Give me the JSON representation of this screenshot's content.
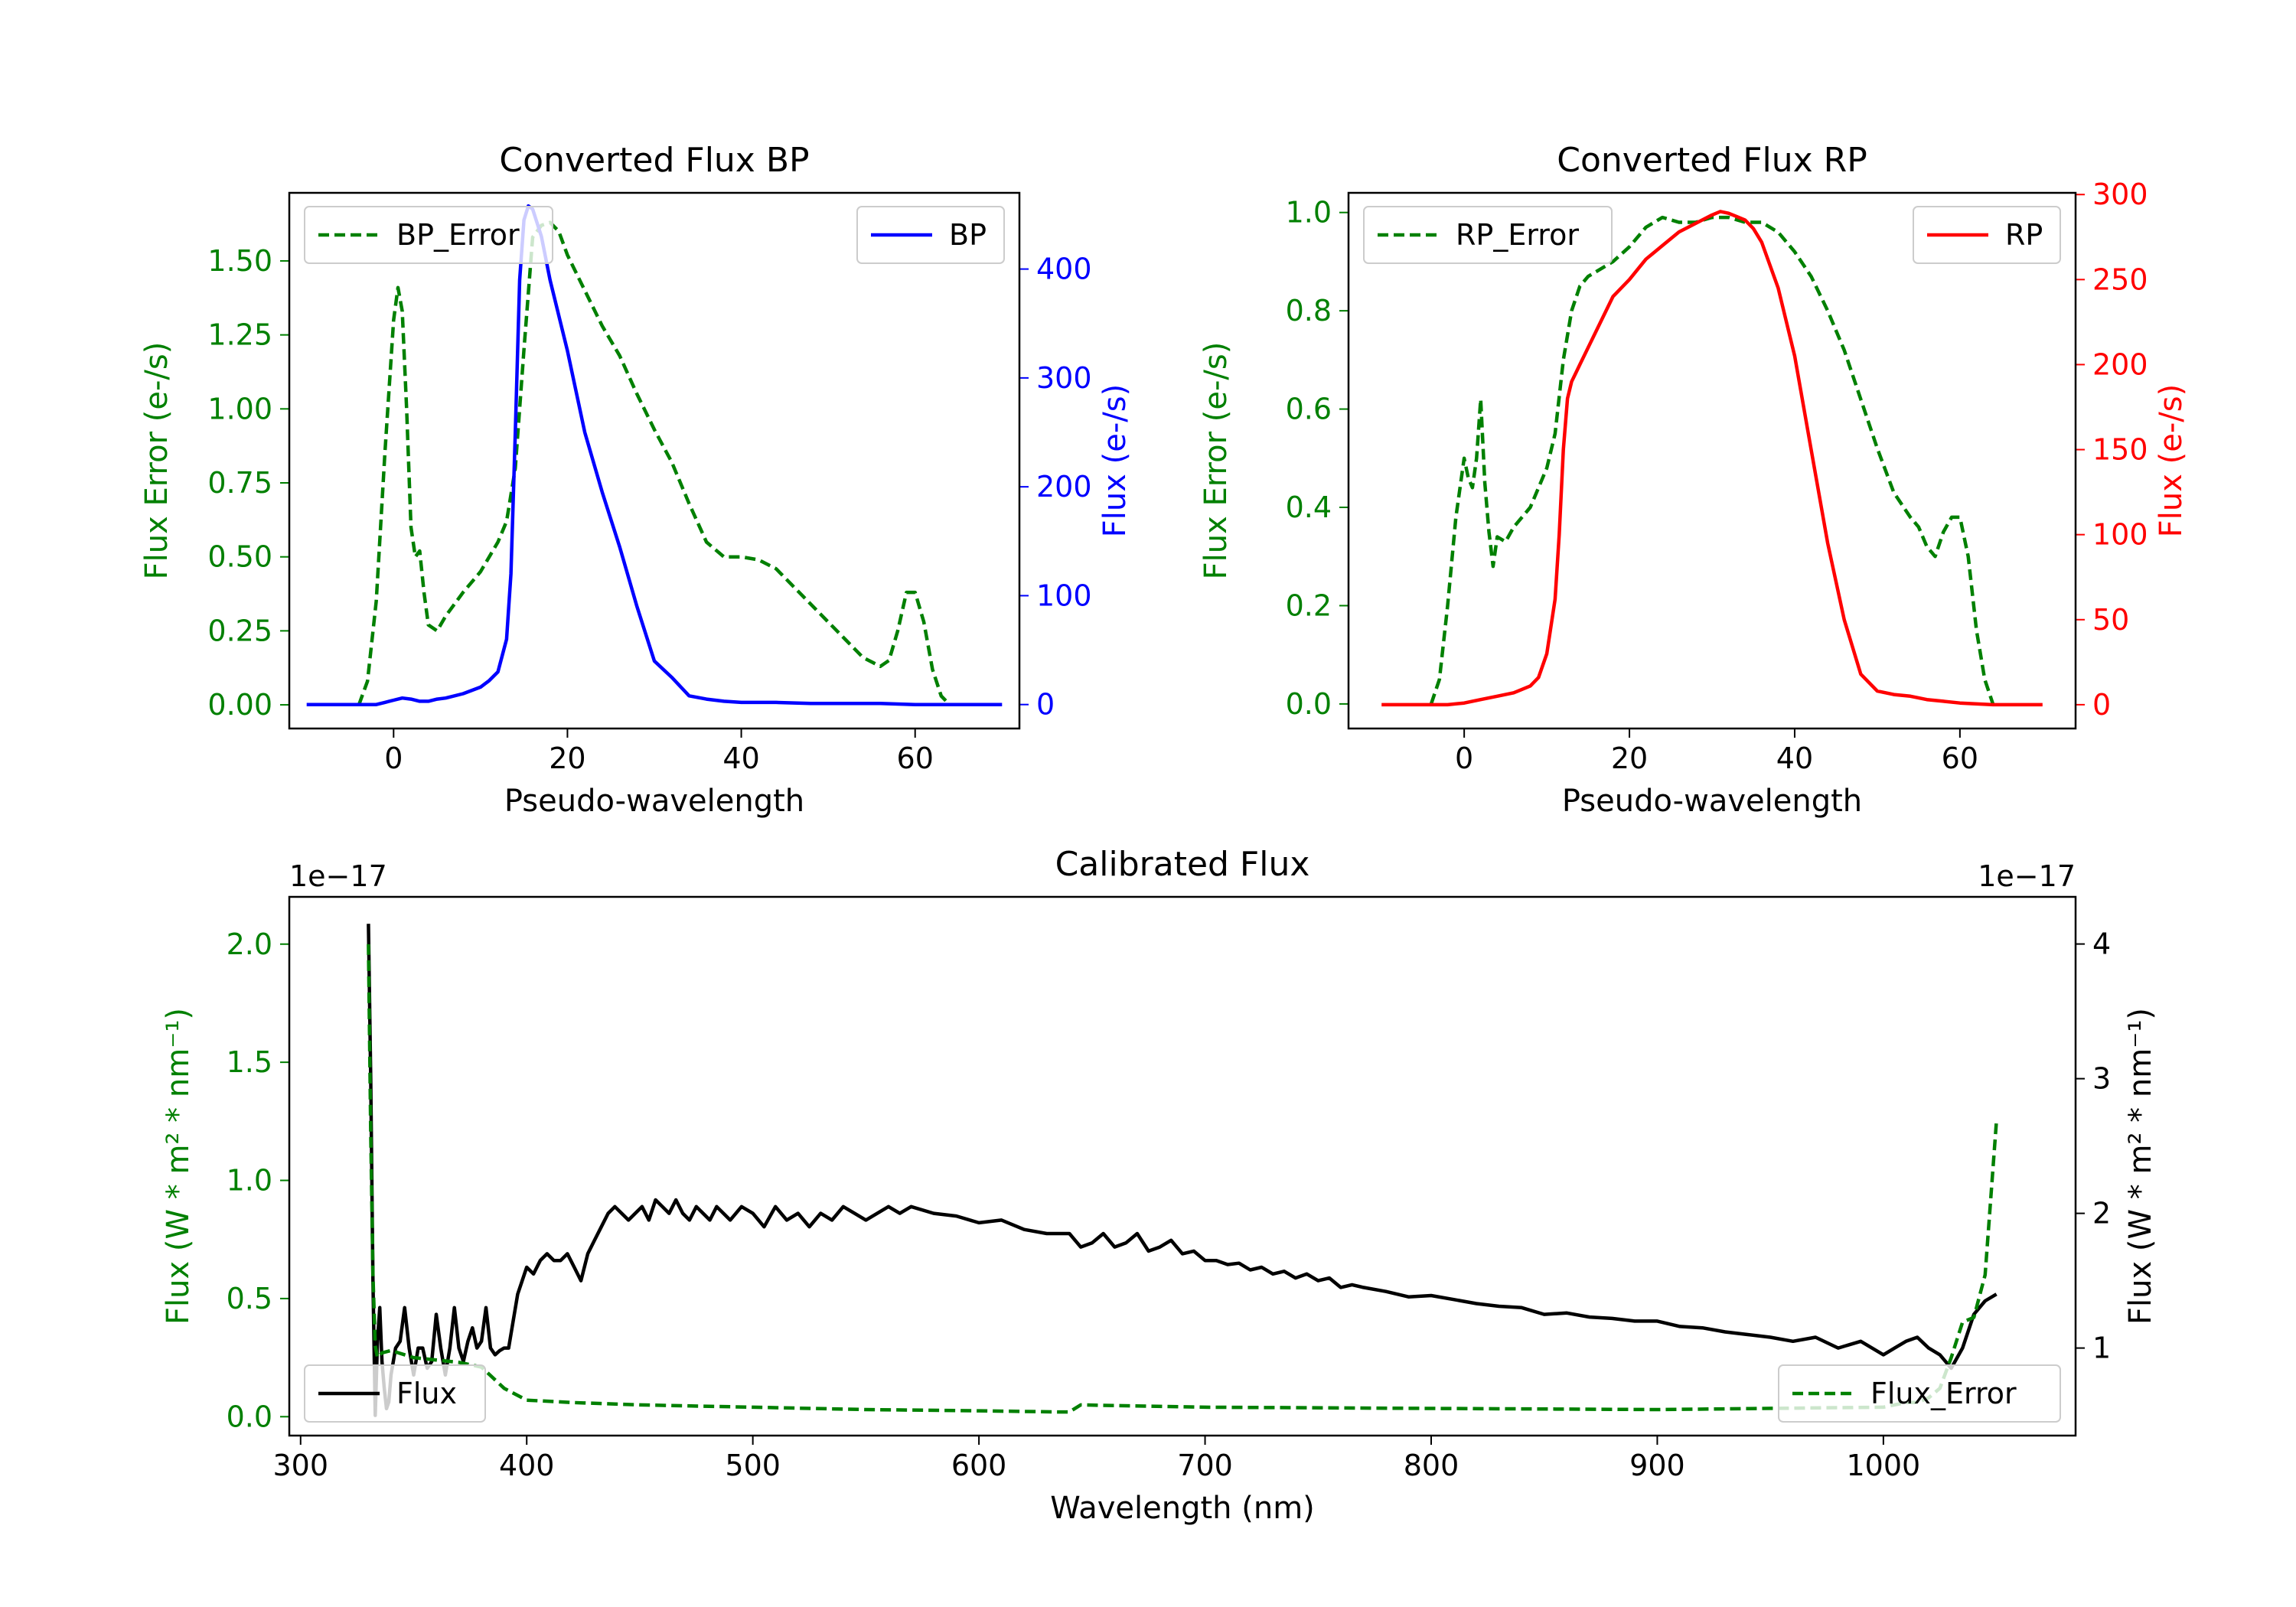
{
  "chart_data": [
    {
      "type": "line",
      "title": "Converted Flux BP",
      "xlabel": "Pseudo-wavelength",
      "xlim": [
        -12,
        72
      ],
      "xticks": [
        0,
        20,
        40,
        60
      ],
      "left_axis": {
        "label": "Flux Error (e-/s)",
        "color": "#008000",
        "ylim": [
          -0.08,
          1.73
        ],
        "ticks": [
          "0.00",
          "0.25",
          "0.50",
          "0.75",
          "1.00",
          "1.25",
          "1.50"
        ],
        "tick_values": [
          0,
          0.25,
          0.5,
          0.75,
          1.0,
          1.25,
          1.5
        ]
      },
      "right_axis": {
        "label": "Flux (e-/s)",
        "color": "#0000ff",
        "ylim": [
          -22,
          470
        ],
        "ticks": [
          "0",
          "100",
          "200",
          "300",
          "400"
        ],
        "tick_values": [
          0,
          100,
          200,
          300,
          400
        ]
      },
      "series": [
        {
          "name": "BP_Error",
          "axis": "left",
          "style": "dashed",
          "color": "#008000",
          "x": [
            -4,
            -3,
            -2,
            -1,
            0,
            0.5,
            1,
            1.5,
            2,
            2.5,
            3,
            3.5,
            4,
            5,
            6,
            8,
            10,
            12,
            13,
            14,
            15,
            16,
            17,
            18,
            19,
            20,
            22,
            24,
            26,
            28,
            30,
            32,
            34,
            36,
            38,
            40,
            42,
            44,
            46,
            48,
            50,
            52,
            54,
            56,
            57,
            58,
            59,
            60,
            61,
            62,
            63,
            64
          ],
          "y": [
            0,
            0.08,
            0.35,
            0.85,
            1.3,
            1.41,
            1.33,
            1.0,
            0.6,
            0.5,
            0.52,
            0.38,
            0.27,
            0.25,
            0.3,
            0.38,
            0.45,
            0.55,
            0.62,
            0.8,
            1.2,
            1.58,
            1.62,
            1.63,
            1.6,
            1.52,
            1.4,
            1.28,
            1.18,
            1.05,
            0.93,
            0.82,
            0.68,
            0.55,
            0.5,
            0.5,
            0.49,
            0.46,
            0.4,
            0.34,
            0.28,
            0.22,
            0.16,
            0.13,
            0.15,
            0.25,
            0.38,
            0.38,
            0.28,
            0.12,
            0.03,
            0.0
          ]
        },
        {
          "name": "BP",
          "axis": "right",
          "style": "solid",
          "color": "#0000ff",
          "x": [
            -10,
            -6,
            -4,
            -2,
            -1,
            0,
            1,
            2,
            3,
            4,
            5,
            6,
            8,
            10,
            11,
            12,
            13,
            13.5,
            14,
            14.5,
            15,
            15.5,
            16,
            17,
            18,
            20,
            22,
            24,
            26,
            28,
            30,
            32,
            34,
            36,
            38,
            40,
            44,
            48,
            52,
            56,
            60,
            64,
            68,
            70
          ],
          "y": [
            0,
            0,
            0,
            0,
            2,
            4,
            6,
            5,
            3,
            3,
            5,
            6,
            10,
            16,
            22,
            30,
            60,
            120,
            250,
            390,
            445,
            458,
            455,
            430,
            390,
            325,
            250,
            195,
            145,
            90,
            40,
            25,
            8,
            5,
            3,
            2,
            2,
            1,
            1,
            1,
            0,
            0,
            0,
            0
          ]
        }
      ],
      "legends": [
        {
          "entries": [
            "BP_Error"
          ],
          "position": "upper-left"
        },
        {
          "entries": [
            "BP"
          ],
          "position": "upper-right"
        }
      ]
    },
    {
      "type": "line",
      "title": "Converted Flux RP",
      "xlabel": "Pseudo-wavelength",
      "xlim": [
        -14,
        74
      ],
      "xticks": [
        0,
        20,
        40,
        60
      ],
      "left_axis": {
        "label": "Flux Error (e-/s)",
        "color": "#008000",
        "ylim": [
          -0.05,
          1.04
        ],
        "ticks": [
          "0.0",
          "0.2",
          "0.4",
          "0.6",
          "0.8",
          "1.0"
        ],
        "tick_values": [
          0,
          0.2,
          0.4,
          0.6,
          0.8,
          1.0
        ]
      },
      "right_axis": {
        "label": "Flux (e-/s)",
        "color": "#ff0000",
        "ylim": [
          -14,
          301
        ],
        "ticks": [
          "0",
          "50",
          "100",
          "150",
          "200",
          "250",
          "300"
        ],
        "tick_values": [
          0,
          50,
          100,
          150,
          200,
          250,
          300
        ]
      },
      "series": [
        {
          "name": "RP_Error",
          "axis": "left",
          "style": "dashed",
          "color": "#008000",
          "x": [
            -4,
            -3,
            -2,
            -1,
            0,
            0.5,
            1,
            1.5,
            2,
            2.5,
            3,
            3.5,
            4,
            5,
            6,
            8,
            10,
            11,
            12,
            13,
            14,
            15,
            16,
            18,
            20,
            22,
            24,
            26,
            28,
            30,
            32,
            34,
            36,
            38,
            40,
            42,
            44,
            46,
            48,
            50,
            52,
            54,
            55,
            56,
            57,
            58,
            59,
            60,
            61,
            62,
            63,
            64
          ],
          "y": [
            0,
            0.05,
            0.2,
            0.38,
            0.5,
            0.46,
            0.44,
            0.5,
            0.62,
            0.45,
            0.35,
            0.28,
            0.34,
            0.33,
            0.36,
            0.4,
            0.48,
            0.55,
            0.7,
            0.8,
            0.85,
            0.87,
            0.88,
            0.9,
            0.93,
            0.97,
            0.99,
            0.98,
            0.98,
            0.99,
            0.99,
            0.98,
            0.98,
            0.96,
            0.92,
            0.87,
            0.8,
            0.72,
            0.62,
            0.52,
            0.43,
            0.38,
            0.36,
            0.32,
            0.3,
            0.35,
            0.38,
            0.38,
            0.3,
            0.15,
            0.05,
            0.0
          ]
        },
        {
          "name": "RP",
          "axis": "right",
          "style": "solid",
          "color": "#ff0000",
          "x": [
            -10,
            -6,
            -2,
            0,
            2,
            4,
            6,
            8,
            9,
            10,
            11,
            11.5,
            12,
            12.5,
            13,
            13.5,
            14,
            15,
            16,
            18,
            20,
            22,
            24,
            26,
            28,
            30,
            31,
            32,
            33,
            34,
            35,
            36,
            38,
            40,
            42,
            44,
            46,
            48,
            50,
            52,
            54,
            56,
            58,
            60,
            64,
            68,
            70
          ],
          "y": [
            0,
            0,
            0,
            1,
            3,
            5,
            7,
            11,
            16,
            30,
            62,
            100,
            150,
            180,
            190,
            195,
            200,
            210,
            220,
            240,
            250,
            262,
            270,
            278,
            283,
            288,
            290,
            289,
            287,
            285,
            280,
            272,
            245,
            205,
            150,
            95,
            50,
            18,
            8,
            6,
            5,
            3,
            2,
            1,
            0,
            0,
            0
          ]
        }
      ],
      "legends": [
        {
          "entries": [
            "RP_Error"
          ],
          "position": "upper-left"
        },
        {
          "entries": [
            "RP"
          ],
          "position": "upper-right"
        }
      ]
    },
    {
      "type": "line",
      "title": "Calibrated Flux",
      "xlabel": "Wavelength (nm)",
      "xlim": [
        295,
        1085
      ],
      "xticks": [
        300,
        400,
        500,
        600,
        700,
        800,
        900,
        1000
      ],
      "left_axis": {
        "label": "Flux (W * m² * nm⁻¹)",
        "color": "#008000",
        "ylim": [
          -0.08,
          2.2
        ],
        "ticks": [
          "0.0",
          "0.5",
          "1.0",
          "1.5",
          "2.0"
        ],
        "tick_values": [
          0,
          0.5,
          1.0,
          1.5,
          2.0
        ],
        "offset_text": "1e−17"
      },
      "right_axis": {
        "label": "Flux (W * m² * nm⁻¹)",
        "color": "#000000",
        "ylim": [
          0.35,
          4.35
        ],
        "ticks": [
          "1",
          "2",
          "3",
          "4"
        ],
        "tick_values": [
          1,
          2,
          3,
          4
        ],
        "offset_text": "1e−17"
      },
      "series": [
        {
          "name": "Flux",
          "axis": "right",
          "style": "solid",
          "color": "#000000",
          "x": [
            330,
            331,
            332,
            333,
            334,
            335,
            336,
            337,
            338,
            339,
            340,
            342,
            344,
            346,
            348,
            350,
            352,
            354,
            356,
            358,
            360,
            362,
            364,
            366,
            368,
            370,
            372,
            374,
            376,
            378,
            380,
            382,
            384,
            386,
            388,
            390,
            392,
            394,
            396,
            398,
            400,
            403,
            406,
            409,
            412,
            415,
            418,
            421,
            424,
            427,
            430,
            433,
            436,
            439,
            442,
            445,
            448,
            451,
            454,
            457,
            460,
            463,
            466,
            469,
            472,
            475,
            478,
            481,
            484,
            487,
            490,
            495,
            500,
            505,
            510,
            515,
            520,
            525,
            530,
            535,
            540,
            545,
            550,
            555,
            560,
            565,
            570,
            580,
            590,
            600,
            610,
            620,
            630,
            640,
            645,
            650,
            655,
            660,
            665,
            670,
            675,
            680,
            685,
            690,
            695,
            700,
            705,
            710,
            715,
            720,
            725,
            730,
            735,
            740,
            745,
            750,
            755,
            760,
            765,
            770,
            780,
            790,
            800,
            810,
            820,
            830,
            840,
            850,
            860,
            870,
            880,
            890,
            900,
            910,
            920,
            930,
            940,
            950,
            960,
            970,
            980,
            990,
            1000,
            1005,
            1010,
            1015,
            1020,
            1025,
            1030,
            1035,
            1040,
            1045,
            1050
          ],
          "y": [
            4.15,
            3.0,
            1.5,
            0.5,
            1.05,
            1.3,
            0.9,
            0.7,
            0.55,
            0.6,
            0.8,
            1.0,
            1.05,
            1.3,
            1.0,
            0.8,
            1.0,
            1.0,
            0.85,
            0.9,
            1.25,
            1.0,
            0.8,
            1.0,
            1.3,
            1.0,
            0.9,
            1.05,
            1.15,
            1.0,
            1.05,
            1.3,
            1.0,
            0.95,
            0.98,
            1.0,
            1.0,
            1.2,
            1.4,
            1.5,
            1.6,
            1.55,
            1.65,
            1.7,
            1.65,
            1.65,
            1.7,
            1.6,
            1.5,
            1.7,
            1.8,
            1.9,
            2.0,
            2.05,
            2.0,
            1.95,
            2.0,
            2.05,
            1.95,
            2.1,
            2.05,
            2.0,
            2.1,
            2.0,
            1.95,
            2.05,
            2.0,
            1.95,
            2.05,
            2.0,
            1.95,
            2.05,
            2.0,
            1.9,
            2.05,
            1.95,
            2.0,
            1.9,
            2.0,
            1.95,
            2.05,
            2.0,
            1.95,
            2.0,
            2.05,
            2.0,
            2.05,
            2.0,
            1.98,
            1.93,
            1.95,
            1.88,
            1.85,
            1.85,
            1.75,
            1.78,
            1.85,
            1.75,
            1.78,
            1.85,
            1.72,
            1.75,
            1.8,
            1.7,
            1.72,
            1.65,
            1.65,
            1.62,
            1.63,
            1.58,
            1.6,
            1.55,
            1.57,
            1.52,
            1.55,
            1.5,
            1.52,
            1.45,
            1.47,
            1.45,
            1.42,
            1.38,
            1.39,
            1.36,
            1.33,
            1.31,
            1.3,
            1.25,
            1.26,
            1.23,
            1.22,
            1.2,
            1.2,
            1.16,
            1.15,
            1.12,
            1.1,
            1.08,
            1.05,
            1.08,
            1.0,
            1.05,
            0.95,
            1.0,
            1.05,
            1.08,
            1.0,
            0.95,
            0.85,
            1.0,
            1.25,
            1.35,
            1.4
          ]
        },
        {
          "name": "Flux_Error",
          "axis": "left",
          "style": "dashed",
          "color": "#008000",
          "x": [
            330,
            331,
            332,
            333,
            334,
            336,
            340,
            350,
            360,
            370,
            380,
            390,
            400,
            420,
            450,
            500,
            550,
            600,
            635,
            640,
            645,
            700,
            800,
            900,
            1000,
            1010,
            1015,
            1020,
            1025,
            1030,
            1035,
            1040,
            1045,
            1050
          ],
          "y": [
            2.0,
            1.2,
            0.6,
            0.3,
            0.25,
            0.27,
            0.28,
            0.25,
            0.24,
            0.23,
            0.21,
            0.12,
            0.07,
            0.06,
            0.05,
            0.04,
            0.03,
            0.025,
            0.02,
            0.02,
            0.05,
            0.04,
            0.035,
            0.03,
            0.04,
            0.06,
            0.06,
            0.08,
            0.12,
            0.25,
            0.4,
            0.42,
            0.6,
            1.25
          ]
        }
      ],
      "legends": [
        {
          "entries": [
            "Flux"
          ],
          "position": "lower-left"
        },
        {
          "entries": [
            "Flux_Error"
          ],
          "position": "lower-right"
        }
      ]
    }
  ]
}
